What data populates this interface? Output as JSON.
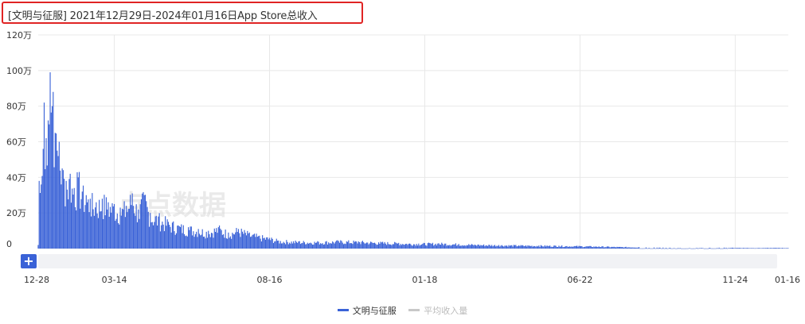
{
  "title": "[文明与征服]  2021年12月29日-2024年01月16日App Store总收入",
  "watermark": "点点数据",
  "legend": {
    "series_label": "文明与征服",
    "avg_label": "平均收入量"
  },
  "colors": {
    "series": "#3a62d7",
    "avg_off": "#c8c8c8",
    "grid": "#e8e8e8",
    "title_border": "#e02424"
  },
  "plus_label": "+",
  "chart_data": {
    "type": "bar",
    "title": "[文明与征服]  2021年12月29日-2024年01月16日App Store总收入",
    "xlabel": "",
    "ylabel": "",
    "ylim": [
      0,
      1200000
    ],
    "yticks": [
      0,
      200000,
      400000,
      600000,
      800000,
      1000000,
      1200000
    ],
    "ytick_labels": [
      "0",
      "20万",
      "40万",
      "60万",
      "80万",
      "100万",
      "120万"
    ],
    "x_tick_labels": [
      "12-28",
      "03-14",
      "08-16",
      "01-18",
      "06-22",
      "11-24",
      "01-16"
    ],
    "x_tick_day_index": [
      0,
      76,
      231,
      386,
      541,
      696,
      749
    ],
    "total_days": 750,
    "grid": true,
    "legend_position": "bottom",
    "series": [
      {
        "name": "文明与征服",
        "keypoints_day_value": [
          [
            0,
            20000
          ],
          [
            1,
            380000
          ],
          [
            3,
            360000
          ],
          [
            5,
            560000
          ],
          [
            6,
            820000
          ],
          [
            8,
            620000
          ],
          [
            10,
            720000
          ],
          [
            12,
            990000
          ],
          [
            14,
            800000
          ],
          [
            15,
            880000
          ],
          [
            17,
            650000
          ],
          [
            19,
            550000
          ],
          [
            21,
            600000
          ],
          [
            24,
            450000
          ],
          [
            28,
            380000
          ],
          [
            32,
            420000
          ],
          [
            36,
            340000
          ],
          [
            40,
            400000
          ],
          [
            44,
            320000
          ],
          [
            48,
            300000
          ],
          [
            52,
            280000
          ],
          [
            58,
            260000
          ],
          [
            64,
            280000
          ],
          [
            70,
            260000
          ],
          [
            76,
            250000
          ],
          [
            82,
            230000
          ],
          [
            88,
            240000
          ],
          [
            94,
            310000
          ],
          [
            100,
            220000
          ],
          [
            106,
            300000
          ],
          [
            112,
            200000
          ],
          [
            120,
            180000
          ],
          [
            130,
            150000
          ],
          [
            140,
            130000
          ],
          [
            150,
            120000
          ],
          [
            160,
            110000
          ],
          [
            170,
            100000
          ],
          [
            180,
            120000
          ],
          [
            190,
            90000
          ],
          [
            200,
            110000
          ],
          [
            210,
            85000
          ],
          [
            220,
            70000
          ],
          [
            231,
            60000
          ],
          [
            240,
            45000
          ],
          [
            260,
            40000
          ],
          [
            280,
            38000
          ],
          [
            300,
            42000
          ],
          [
            320,
            40000
          ],
          [
            340,
            35000
          ],
          [
            360,
            32000
          ],
          [
            380,
            28000
          ],
          [
            400,
            30000
          ],
          [
            420,
            26000
          ],
          [
            440,
            22000
          ],
          [
            460,
            20000
          ],
          [
            480,
            18000
          ],
          [
            500,
            17000
          ],
          [
            520,
            16000
          ],
          [
            541,
            14000
          ],
          [
            560,
            12000
          ],
          [
            580,
            9000
          ],
          [
            600,
            8000
          ],
          [
            620,
            5000
          ],
          [
            640,
            4000
          ],
          [
            660,
            3000
          ],
          [
            680,
            5000
          ],
          [
            700,
            4000
          ],
          [
            720,
            3000
          ],
          [
            740,
            4000
          ],
          [
            749,
            3000
          ]
        ]
      }
    ]
  }
}
